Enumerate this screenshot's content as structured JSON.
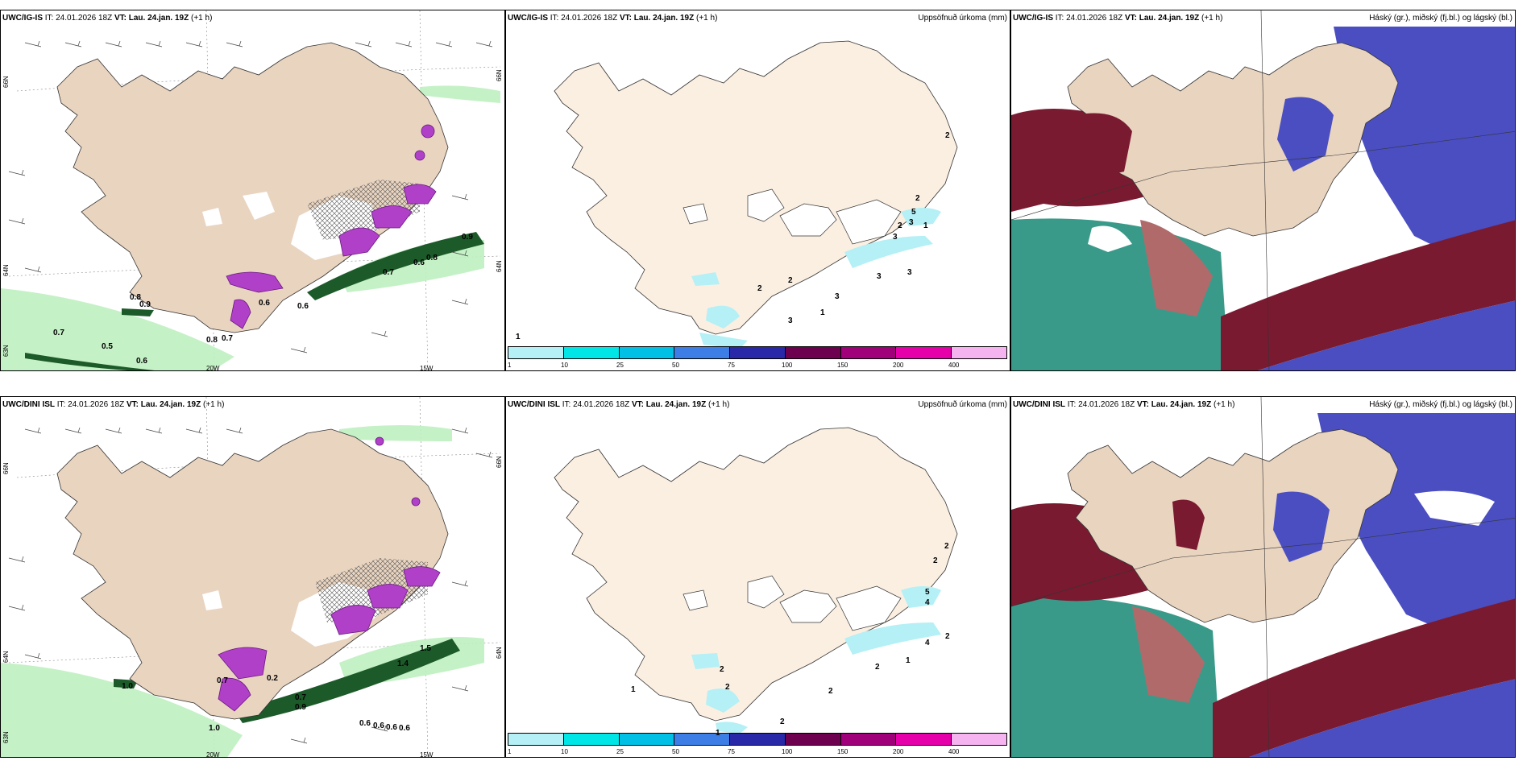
{
  "panels": {
    "top_left": {
      "model": "UWC/IG-IS",
      "it_label": "IT:",
      "it_value": "24.01.2026 18Z",
      "vt_label": "VT:",
      "vt_value": "Lau. 24.jan. 19Z",
      "lead": "(+1 h)",
      "lat_labels": [
        "66N",
        "64N",
        "63N"
      ],
      "lat_labels_right": [
        "66N",
        "64N"
      ],
      "lon_labels": [
        "20W",
        "15W"
      ],
      "values": [
        "0.8",
        "0.9",
        "0.7",
        "0.5",
        "0.6",
        "0.8",
        "0.7",
        "0.6",
        "0.6",
        "0.8",
        "0.9",
        "0.6",
        "0.7"
      ]
    },
    "top_middle": {
      "model": "UWC/IG-IS",
      "it_label": "IT:",
      "it_value": "24.01.2026 18Z",
      "vt_label": "VT:",
      "vt_value": "Lau. 24.jan. 19Z",
      "lead": "(+1 h)",
      "right_label": "Uppsöfnuð úrkoma (mm)",
      "values": [
        "2",
        "2",
        "3",
        "1",
        "2",
        "5",
        "3",
        "3",
        "3",
        "3",
        "2",
        "2",
        "3",
        "1",
        "1"
      ]
    },
    "top_right": {
      "model": "UWC/IG-IS",
      "it_label": "IT:",
      "it_value": "24.01.2026 18Z",
      "vt_label": "VT:",
      "vt_value": "Lau. 24.jan. 19Z",
      "lead": "(+1 h)",
      "right_label": "Háský (gr.), miðský (fj.bl.) og lágský (bl.)"
    },
    "bottom_left": {
      "model": "UWC/DINI ISL",
      "it_label": "IT:",
      "it_value": "24.01.2026 18Z",
      "vt_label": "VT:",
      "vt_value": "Lau. 24.jan. 19Z",
      "lead": "(+1 h)",
      "lat_labels": [
        "66N",
        "64N",
        "63N"
      ],
      "lat_labels_right": [
        "66N",
        "64N"
      ],
      "lon_labels": [
        "20W",
        "15W"
      ],
      "values": [
        "1.0",
        "0.7",
        "0.9",
        "1.0",
        "0.6",
        "0.6",
        "0.6",
        "0.6",
        "1.4",
        "0.7",
        "0.2",
        "1.5"
      ]
    },
    "bottom_middle": {
      "model": "UWC/DINI ISL",
      "it_label": "IT:",
      "it_value": "24.01.2026 18Z",
      "vt_label": "VT:",
      "vt_value": "Lau. 24.jan. 19Z",
      "lead": "(+1 h)",
      "right_label": "Uppsöfnuð úrkoma (mm)",
      "values": [
        "2",
        "2",
        "5",
        "4",
        "4",
        "2",
        "1",
        "2",
        "2",
        "2",
        "2",
        "1",
        "1",
        "2"
      ]
    },
    "bottom_right": {
      "model": "UWC/DINI ISL",
      "it_label": "IT:",
      "it_value": "24.01.2026 18Z",
      "vt_label": "VT:",
      "vt_value": "Lau. 24.jan. 19Z",
      "lead": "(+1 h)",
      "right_label": "Háský (gr.), miðský (fj.bl.) og lágský (bl.)"
    }
  },
  "colorbar": {
    "labels": [
      "1",
      "10",
      "25",
      "50",
      "75",
      "100",
      "150",
      "200",
      "400"
    ],
    "colors": [
      "#b4f0f5",
      "#00e6e6",
      "#00c0e6",
      "#3c7ee6",
      "#2828a8",
      "#6e0050",
      "#a0007a",
      "#e600aa",
      "#f5b4f0"
    ]
  },
  "colors": {
    "land": "#e9d4c0",
    "land_light": "#fbefe2",
    "precip_light": "#bff0c0",
    "precip_dark": "#1c5a2a",
    "magenta": "#b040c8",
    "cloud_high": "#7a1a30",
    "cloud_mid": "#3a9a8a",
    "cloud_low": "#4a4ec0"
  }
}
